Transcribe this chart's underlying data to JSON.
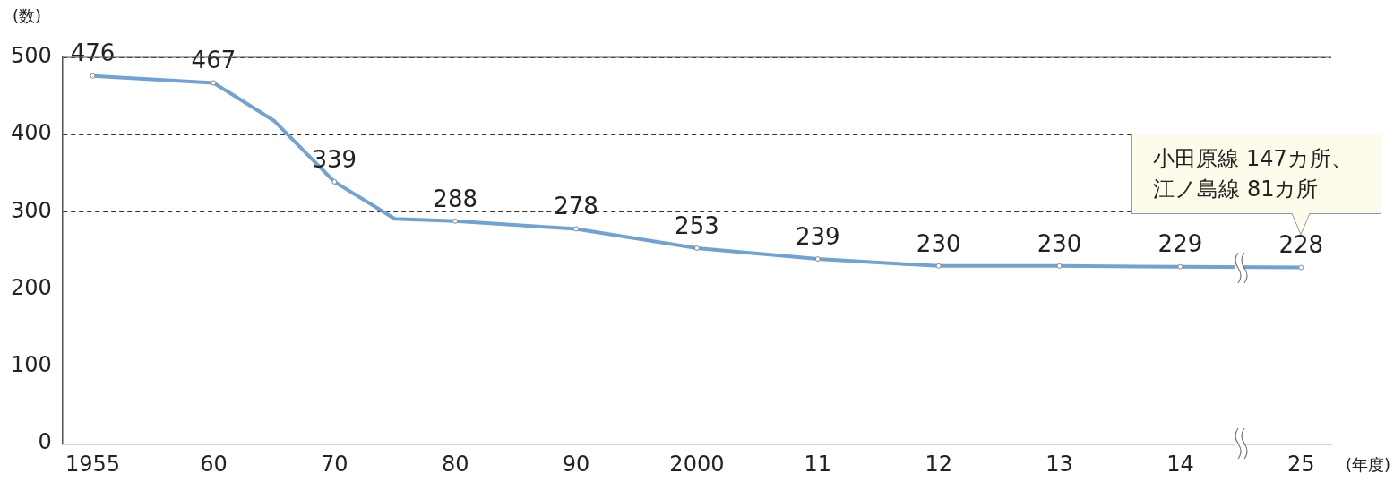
{
  "chart_data": {
    "type": "line",
    "ylabel": "(数)",
    "xlabel": "(年度)",
    "categories": [
      "1955",
      null,
      "60",
      null,
      "70",
      null,
      "80",
      null,
      "90",
      null,
      "2000",
      null,
      "11",
      null,
      "12",
      null,
      "13",
      null,
      "14",
      null,
      "25"
    ],
    "series": [
      {
        "color": "#6fa3d4",
        "values": [
          476,
          null,
          467,
          418,
          339,
          291,
          288,
          null,
          278,
          null,
          253,
          null,
          239,
          null,
          230,
          null,
          230,
          null,
          229,
          null,
          228
        ],
        "value_labels": [
          "476",
          null,
          "467",
          null,
          "339",
          null,
          "288",
          null,
          "278",
          null,
          "253",
          null,
          "239",
          null,
          "230",
          null,
          "230",
          null,
          "229",
          null,
          "228"
        ]
      }
    ],
    "ylim": [
      0,
      500
    ],
    "yticks": [
      0,
      100,
      200,
      300,
      400,
      500
    ],
    "grid": "y",
    "line_style": "solid",
    "marker": "circle",
    "legend": false,
    "annotations": [
      "小田原線 147カ所、江ノ島線 81カ所"
    ]
  }
}
